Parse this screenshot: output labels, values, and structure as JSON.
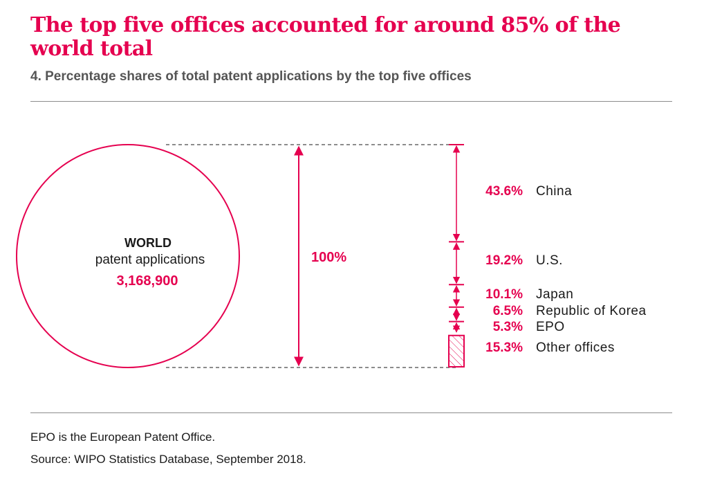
{
  "header": {
    "title": "The top five offices accounted for around 85% of the world total",
    "subtitle": "4. Percentage shares of total patent applications by the top five offices"
  },
  "footer": {
    "note": "EPO is the European Patent Office.",
    "source": "Source: WIPO Statistics Database, September 2018."
  },
  "colors": {
    "accent": "#e5004f",
    "text": "#1a1a1a",
    "muted": "#555555",
    "rule": "#8c8c8c"
  },
  "chart_data": {
    "type": "bar",
    "circle": {
      "line1": "WORLD",
      "line2": "patent applications",
      "total": "3,168,900"
    },
    "total_share_label": "100%",
    "categories": [
      "China",
      "U.S.",
      "Japan",
      "Republic of Korea",
      "EPO",
      "Other offices"
    ],
    "values": [
      43.6,
      19.2,
      10.1,
      6.5,
      5.3,
      15.3
    ],
    "value_labels": [
      "43.6%",
      "19.2%",
      "10.1%",
      "6.5%",
      "5.3%",
      "15.3%"
    ],
    "hatched_category": "Other offices"
  }
}
